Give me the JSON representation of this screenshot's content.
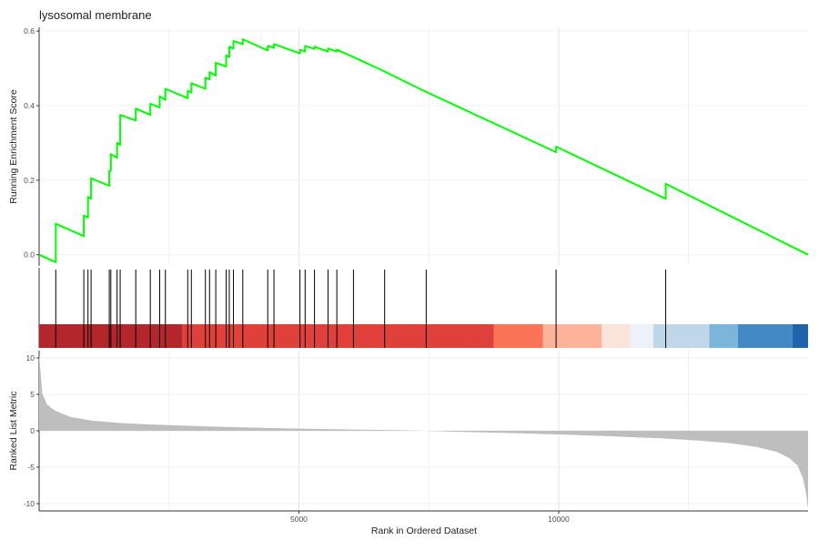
{
  "chart_data": {
    "type": "line",
    "title": "lysosomal membrane",
    "xlabel": "Rank in Ordered Dataset",
    "x_ticks": [
      5000,
      10000
    ],
    "xlim": [
      0,
      14800
    ],
    "grid": true,
    "panels": {
      "enrichment": {
        "ylabel": "Running Enrichment Score",
        "ylim": [
          -0.03,
          0.61
        ],
        "y_ticks": [
          0.0,
          0.2,
          0.4,
          0.6
        ],
        "y_tick_labels": [
          "0.0",
          "0.2",
          "0.4",
          "0.6"
        ],
        "line_color": "#00FF00",
        "points": [
          [
            0,
            0.0
          ],
          [
            320,
            -0.02
          ],
          [
            320,
            0.083
          ],
          [
            860,
            0.05
          ],
          [
            860,
            0.105
          ],
          [
            940,
            0.1
          ],
          [
            940,
            0.155
          ],
          [
            1000,
            0.15
          ],
          [
            1000,
            0.205
          ],
          [
            1350,
            0.185
          ],
          [
            1350,
            0.225
          ],
          [
            1380,
            0.225
          ],
          [
            1380,
            0.27
          ],
          [
            1500,
            0.26
          ],
          [
            1500,
            0.3
          ],
          [
            1560,
            0.295
          ],
          [
            1560,
            0.375
          ],
          [
            1860,
            0.36
          ],
          [
            1860,
            0.392
          ],
          [
            2140,
            0.375
          ],
          [
            2140,
            0.405
          ],
          [
            2320,
            0.395
          ],
          [
            2320,
            0.425
          ],
          [
            2430,
            0.415
          ],
          [
            2430,
            0.445
          ],
          [
            2860,
            0.42
          ],
          [
            2860,
            0.44
          ],
          [
            2930,
            0.435
          ],
          [
            2930,
            0.46
          ],
          [
            3200,
            0.445
          ],
          [
            3200,
            0.475
          ],
          [
            3280,
            0.47
          ],
          [
            3280,
            0.49
          ],
          [
            3400,
            0.48
          ],
          [
            3400,
            0.515
          ],
          [
            3600,
            0.505
          ],
          [
            3600,
            0.535
          ],
          [
            3660,
            0.53
          ],
          [
            3660,
            0.558
          ],
          [
            3740,
            0.553
          ],
          [
            3740,
            0.573
          ],
          [
            3920,
            0.565
          ],
          [
            3920,
            0.578
          ],
          [
            4400,
            0.548
          ],
          [
            4400,
            0.56
          ],
          [
            4520,
            0.555
          ],
          [
            4520,
            0.565
          ],
          [
            5020,
            0.54
          ],
          [
            5020,
            0.55
          ],
          [
            5120,
            0.545
          ],
          [
            5120,
            0.56
          ],
          [
            5300,
            0.552
          ],
          [
            5300,
            0.558
          ],
          [
            5560,
            0.545
          ],
          [
            5560,
            0.553
          ],
          [
            5730,
            0.545
          ],
          [
            5730,
            0.55
          ],
          [
            6050,
            0.53
          ],
          [
            6600,
            0.495
          ],
          [
            7400,
            0.44
          ],
          [
            9950,
            0.275
          ],
          [
            9950,
            0.29
          ],
          [
            12060,
            0.15
          ],
          [
            12060,
            0.19
          ],
          [
            14800,
            0.0
          ]
        ]
      },
      "hits": {
        "ranks": [
          320,
          860,
          940,
          1000,
          1350,
          1380,
          1500,
          1560,
          1860,
          2140,
          2320,
          2430,
          2860,
          2930,
          3200,
          3280,
          3400,
          3600,
          3660,
          3740,
          3920,
          4400,
          4520,
          5020,
          5120,
          5300,
          5560,
          5730,
          6050,
          6650,
          7450,
          9950,
          12060
        ],
        "color_bands": [
          {
            "from": 0,
            "to": 2750,
            "color": "#B2262C"
          },
          {
            "from": 2750,
            "to": 8750,
            "color": "#E0403A"
          },
          {
            "from": 8750,
            "to": 9700,
            "color": "#FB7458"
          },
          {
            "from": 9700,
            "to": 10830,
            "color": "#FDB39A"
          },
          {
            "from": 10830,
            "to": 11370,
            "color": "#FDE4DA"
          },
          {
            "from": 11370,
            "to": 11820,
            "color": "#EDF2F9"
          },
          {
            "from": 11820,
            "to": 12900,
            "color": "#C0D7EA"
          },
          {
            "from": 12900,
            "to": 13450,
            "color": "#7DB5DA"
          },
          {
            "from": 13450,
            "to": 14500,
            "color": "#4389C4"
          },
          {
            "from": 14500,
            "to": 14800,
            "color": "#2063AB"
          }
        ]
      },
      "ranked_metric": {
        "ylabel": "Ranked List Metric",
        "ylim": [
          -11,
          11
        ],
        "y_ticks": [
          10,
          5,
          0,
          -5,
          -10
        ],
        "y_tick_labels": [
          "10",
          "5",
          "0",
          "-5",
          "-10"
        ],
        "fill_color": "#BEBEBE",
        "curve": [
          [
            0,
            10.5
          ],
          [
            60,
            5.2
          ],
          [
            150,
            3.6
          ],
          [
            300,
            2.8
          ],
          [
            600,
            1.9
          ],
          [
            1000,
            1.4
          ],
          [
            1500,
            1.1
          ],
          [
            2000,
            0.9
          ],
          [
            3000,
            0.65
          ],
          [
            4000,
            0.45
          ],
          [
            5000,
            0.3
          ],
          [
            6000,
            0.18
          ],
          [
            7000,
            0.08
          ],
          [
            7400,
            0.0
          ],
          [
            8000,
            -0.12
          ],
          [
            9000,
            -0.3
          ],
          [
            10000,
            -0.5
          ],
          [
            11000,
            -0.75
          ],
          [
            12000,
            -1.05
          ],
          [
            12700,
            -1.35
          ],
          [
            13300,
            -1.7
          ],
          [
            13800,
            -2.2
          ],
          [
            14200,
            -2.9
          ],
          [
            14450,
            -3.8
          ],
          [
            14600,
            -4.8
          ],
          [
            14700,
            -6.5
          ],
          [
            14760,
            -8.5
          ],
          [
            14800,
            -10.8
          ]
        ]
      }
    }
  }
}
